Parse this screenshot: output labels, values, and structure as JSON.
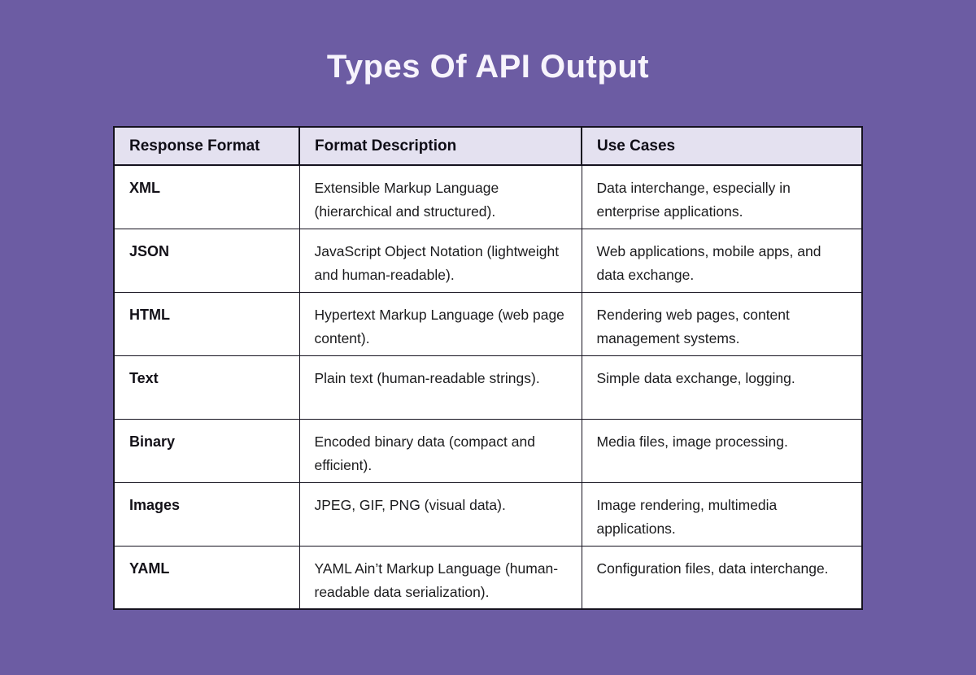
{
  "page": {
    "title": "Types Of API Output",
    "background_color": "#6C5CA3",
    "title_color": "#F7F4FC"
  },
  "table": {
    "header_background": "#E4E1F0",
    "border_color": "#15121F",
    "cell_background": "#FFFFFF",
    "columns": [
      "Response Format",
      "Format Description",
      "Use Cases"
    ],
    "rows": [
      {
        "format": "XML",
        "description": "Extensible Markup Language (hierarchical and structured).",
        "use_cases": "Data interchange, especially in enterprise applications."
      },
      {
        "format": "JSON",
        "description": "JavaScript Object Notation (lightweight and human-readable).",
        "use_cases": "Web applications, mobile apps, and data exchange."
      },
      {
        "format": "HTML",
        "description": "Hypertext Markup Language (web page content).",
        "use_cases": "Rendering web pages, content management systems."
      },
      {
        "format": "Text",
        "description": "Plain text (human-readable strings).",
        "use_cases": "Simple data exchange, logging."
      },
      {
        "format": "Binary",
        "description": "Encoded binary data (compact and efficient).",
        "use_cases": "Media files, image processing."
      },
      {
        "format": "Images",
        "description": "JPEG, GIF, PNG (visual data).",
        "use_cases": "Image rendering, multimedia applications."
      },
      {
        "format": "YAML",
        "description": "YAML Ain’t Markup Language (human-readable data serialization).",
        "use_cases": "Configuration files, data interchange."
      }
    ]
  },
  "chart_data": {
    "type": "table",
    "title": "Types Of API Output",
    "columns": [
      "Response Format",
      "Format Description",
      "Use Cases"
    ],
    "rows": [
      [
        "XML",
        "Extensible Markup Language (hierarchical and structured).",
        "Data interchange, especially in enterprise applications."
      ],
      [
        "JSON",
        "JavaScript Object Notation (lightweight and human-readable).",
        "Web applications, mobile apps, and data exchange."
      ],
      [
        "HTML",
        "Hypertext Markup Language (web page content).",
        "Rendering web pages, content management systems."
      ],
      [
        "Text",
        "Plain text (human-readable strings).",
        "Simple data exchange, logging."
      ],
      [
        "Binary",
        "Encoded binary data (compact and efficient).",
        "Media files, image processing."
      ],
      [
        "Images",
        "JPEG, GIF, PNG (visual data).",
        "Image rendering, multimedia applications."
      ],
      [
        "YAML",
        "YAML Ain’t Markup Language (human-readable data serialization).",
        "Configuration files, data interchange."
      ]
    ],
    "layout": {
      "header_background": "#E4E1F0",
      "page_background": "#6C5CA3",
      "grid": true
    }
  }
}
